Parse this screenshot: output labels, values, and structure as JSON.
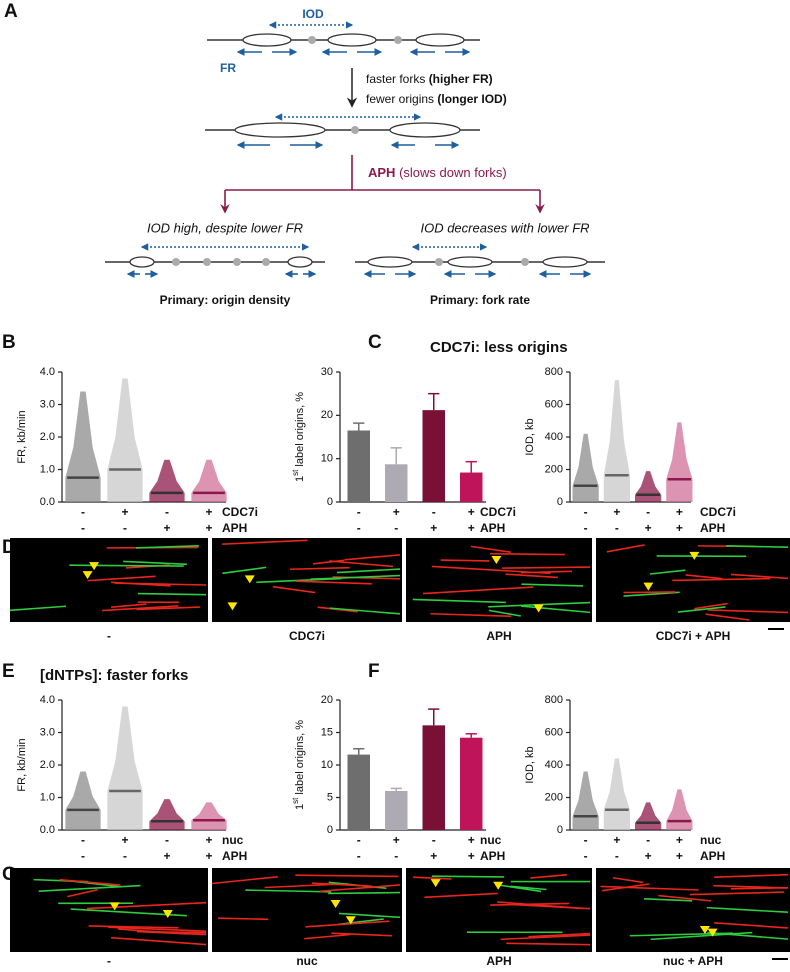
{
  "panels": [
    "A",
    "B",
    "C",
    "D",
    "E",
    "F",
    "G"
  ],
  "diagram": {
    "iod": "IOD",
    "fr": "FR",
    "faster": "faster forks ",
    "faster_bold": "(higher FR)",
    "fewer": "fewer origins ",
    "fewer_bold": "(longer IOD)",
    "aph": "APH",
    "aph_note": " (slows down forks)",
    "left_case": "IOD high, despite lower FR",
    "right_case": "IOD decreases with lower FR",
    "left_primary": "Primary: origin density",
    "right_primary": "Primary: fork rate"
  },
  "images_d": [
    "-",
    "CDC7i",
    "APH",
    "CDC7i + APH"
  ],
  "images_g": [
    "-",
    "nuc",
    "APH",
    "nuc + APH"
  ],
  "chart_data": [
    {
      "type": "dotplot",
      "ylabel": "FR, kb/min",
      "ylim": [
        0,
        4
      ],
      "yticks": [
        {
          "value": 0,
          "label": "0.0"
        },
        {
          "value": 1,
          "label": "1.0"
        },
        {
          "value": 2,
          "label": "2.0"
        },
        {
          "value": 3,
          "label": "3.0"
        },
        {
          "value": 4,
          "label": "4.0"
        }
      ],
      "conditions": [
        {
          "name": "CDC7i",
          "signs": [
            "-",
            "+",
            "-",
            "+"
          ]
        },
        {
          "name": "APH",
          "signs": [
            "-",
            "-",
            "+",
            "+"
          ]
        }
      ],
      "values": [
        0.75,
        1.0,
        0.28,
        0.28
      ],
      "max": [
        3.4,
        3.8,
        1.3,
        1.3
      ],
      "colors": [
        "#8c8c8c",
        "#c8c8c8",
        "#8b1a4a",
        "#d2709a"
      ],
      "median_colors": [
        "#444444",
        "#666666",
        "#333333",
        "#8b1a4a"
      ]
    },
    {
      "type": "bar",
      "title": "CDC7i: less origins",
      "ylabel": [
        "1",
        "st",
        " label origins, %"
      ],
      "ylim": [
        0,
        30
      ],
      "yticks": [
        0,
        10,
        20,
        30
      ],
      "conditions": [
        {
          "name": "CDC7i",
          "signs": [
            "-",
            "+",
            "-",
            "+"
          ]
        },
        {
          "name": "APH",
          "signs": [
            "-",
            "-",
            "+",
            "+"
          ]
        }
      ],
      "values": [
        16.5,
        8.7,
        21.2,
        6.8
      ],
      "errors": [
        1.7,
        3.8,
        3.8,
        2.5
      ],
      "colors": [
        "#6e6e6e",
        "#aeaab4",
        "#7b1037",
        "#c0145a"
      ]
    },
    {
      "type": "dotplot",
      "ylabel": "IOD, kb",
      "ylim": [
        0,
        800
      ],
      "yticks": [
        0,
        200,
        400,
        600,
        800
      ],
      "conditions": [
        {
          "name": "CDC7i",
          "signs": [
            "-",
            "+",
            "-",
            "+"
          ]
        },
        {
          "name": "APH",
          "signs": [
            "-",
            "-",
            "+",
            "+"
          ]
        }
      ],
      "values": [
        100,
        165,
        45,
        140
      ],
      "max": [
        420,
        750,
        190,
        490
      ],
      "colors": [
        "#8c8c8c",
        "#c8c8c8",
        "#8b1a4a",
        "#d2709a"
      ],
      "median_colors": [
        "#444444",
        "#666666",
        "#333333",
        "#8b1a4a"
      ]
    },
    {
      "type": "dotplot",
      "title": "[dNTPs]: faster forks",
      "ylabel": "FR, kb/min",
      "ylim": [
        0,
        4
      ],
      "yticks": [
        {
          "value": 0,
          "label": "0.0"
        },
        {
          "value": 1,
          "label": "1.0"
        },
        {
          "value": 2,
          "label": "2.0"
        },
        {
          "value": 3,
          "label": "3.0"
        },
        {
          "value": 4,
          "label": "4.0"
        }
      ],
      "conditions": [
        {
          "name": "nuc",
          "signs": [
            "-",
            "+",
            "-",
            "+"
          ]
        },
        {
          "name": "APH",
          "signs": [
            "-",
            "-",
            "+",
            "+"
          ]
        }
      ],
      "values": [
        0.62,
        1.2,
        0.27,
        0.3
      ],
      "max": [
        1.8,
        3.8,
        0.95,
        0.85
      ],
      "colors": [
        "#8c8c8c",
        "#c8c8c8",
        "#8b1a4a",
        "#d2709a"
      ],
      "median_colors": [
        "#444444",
        "#666666",
        "#333333",
        "#8b1a4a"
      ]
    },
    {
      "type": "bar",
      "ylabel": [
        "1",
        "st",
        " label origins, %"
      ],
      "ylim": [
        0,
        20
      ],
      "yticks": [
        0,
        5,
        10,
        15,
        20
      ],
      "conditions": [
        {
          "name": "nuc",
          "signs": [
            "-",
            "+",
            "-",
            "+"
          ]
        },
        {
          "name": "APH",
          "signs": [
            "-",
            "-",
            "+",
            "+"
          ]
        }
      ],
      "values": [
        11.6,
        6.0,
        16.1,
        14.2
      ],
      "errors": [
        0.9,
        0.4,
        2.5,
        0.6
      ],
      "colors": [
        "#6e6e6e",
        "#aeaab4",
        "#7b1037",
        "#c0145a"
      ]
    },
    {
      "type": "dotplot",
      "ylabel": "IOD, kb",
      "ylim": [
        0,
        800
      ],
      "yticks": [
        0,
        200,
        400,
        600,
        800
      ],
      "conditions": [
        {
          "name": "nuc",
          "signs": [
            "-",
            "+",
            "-",
            "+"
          ]
        },
        {
          "name": "APH",
          "signs": [
            "-",
            "-",
            "+",
            "+"
          ]
        }
      ],
      "values": [
        85,
        125,
        45,
        55
      ],
      "max": [
        360,
        440,
        170,
        250
      ],
      "colors": [
        "#8c8c8c",
        "#c8c8c8",
        "#8b1a4a",
        "#d2709a"
      ],
      "median_colors": [
        "#444444",
        "#666666",
        "#333333",
        "#8b1a4a"
      ]
    }
  ]
}
